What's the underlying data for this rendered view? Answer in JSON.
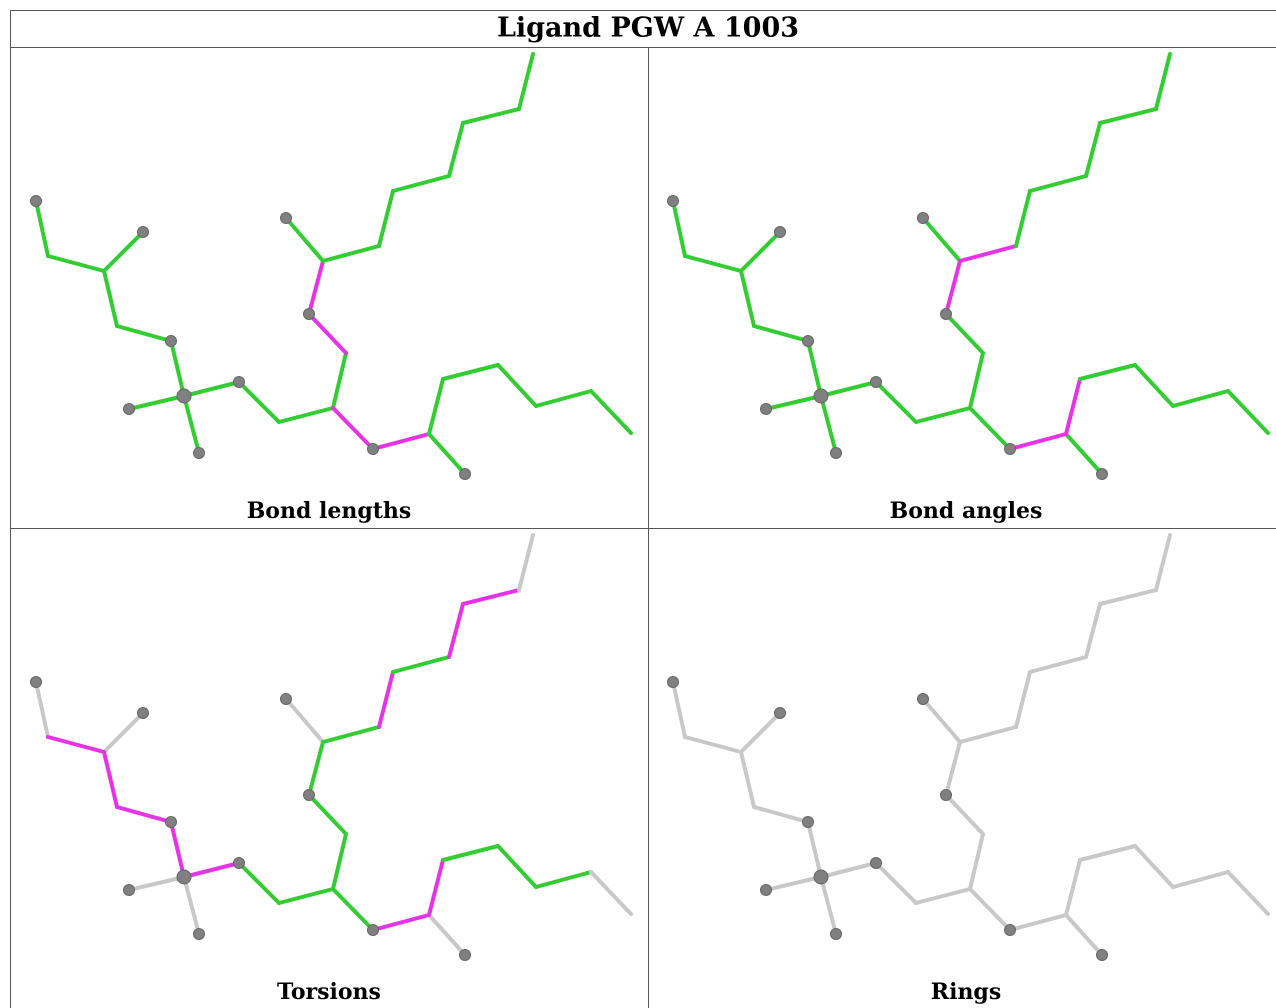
{
  "title": "Ligand PGW A 1003",
  "panels": [
    {
      "caption": "Bond lengths"
    },
    {
      "caption": "Bond angles"
    },
    {
      "caption": "Torsions"
    },
    {
      "caption": "Rings"
    }
  ]
}
